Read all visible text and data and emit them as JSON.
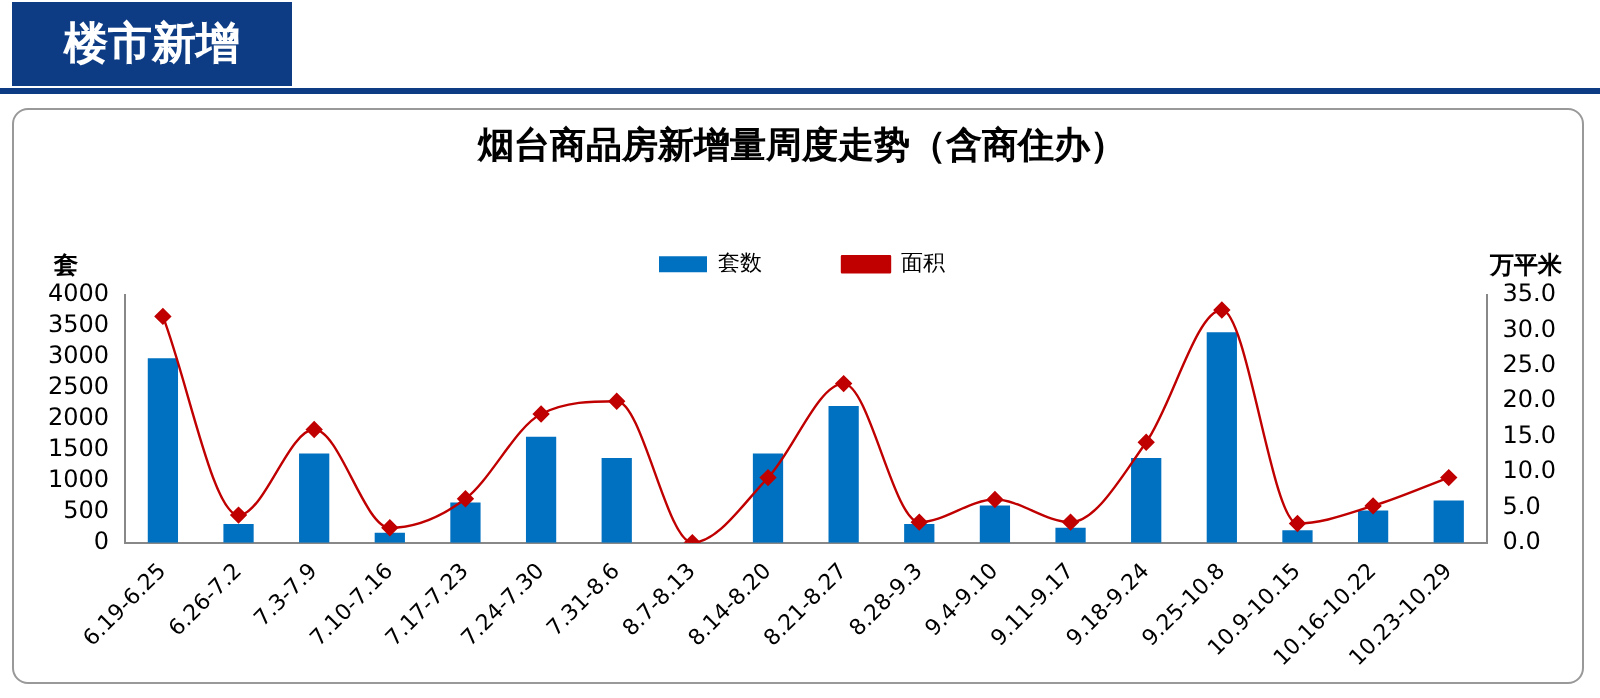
{
  "chart_data": {
    "type": "bar",
    "title": "烟台商品房新增量周度走势（含商住办）",
    "ylabel": "套",
    "y2label": "万平米",
    "annotations": [
      "楼市新增"
    ],
    "categories": [
      "6.19-6.25",
      "6.26-7.2",
      "7.3-7.9",
      "7.10-7.16",
      "7.17-7.23",
      "7.24-7.30",
      "7.31-8.6",
      "8.7-8.13",
      "8.14-8.20",
      "8.21-8.27",
      "8.28-9.3",
      "9.4-9.10",
      "9.11-9.17",
      "9.18-9.24",
      "9.25-10.8",
      "10.9-10.15",
      "10.16-10.22",
      "10.23-10.29"
    ],
    "series": [
      {
        "name": "套数",
        "color": "#0070c0",
        "values": [
          2980,
          300,
          1440,
          160,
          650,
          1710,
          1370,
          0,
          1440,
          2210,
          300,
          600,
          240,
          1370,
          3400,
          200,
          520,
          680
        ]
      },
      {
        "name": "面积",
        "type": "line",
        "axis": "y2",
        "color": "#c00000",
        "marker": "diamond",
        "values": [
          32.0,
          3.9,
          16.0,
          2.1,
          6.2,
          18.2,
          20.0,
          0,
          9.2,
          22.5,
          2.9,
          6.1,
          2.9,
          14.2,
          32.9,
          2.7,
          5.2,
          9.2
        ]
      }
    ],
    "ylim": [
      0,
      4000
    ],
    "yticks": [
      0,
      500,
      1000,
      1500,
      2000,
      2500,
      3000,
      3500,
      4000
    ],
    "y2lim": [
      0,
      35
    ],
    "y2ticks": [
      {
        "value": 0,
        "label": "0.0"
      },
      {
        "value": 5,
        "label": "5.0"
      },
      {
        "value": 10,
        "label": "10.0"
      },
      {
        "value": 15,
        "label": "15.0"
      },
      {
        "value": 20,
        "label": "20.0"
      },
      {
        "value": 25,
        "label": "25.0"
      },
      {
        "value": 30,
        "label": "30.0"
      },
      {
        "value": 35,
        "label": "35.0"
      }
    ],
    "grid": false,
    "legend": "top"
  }
}
